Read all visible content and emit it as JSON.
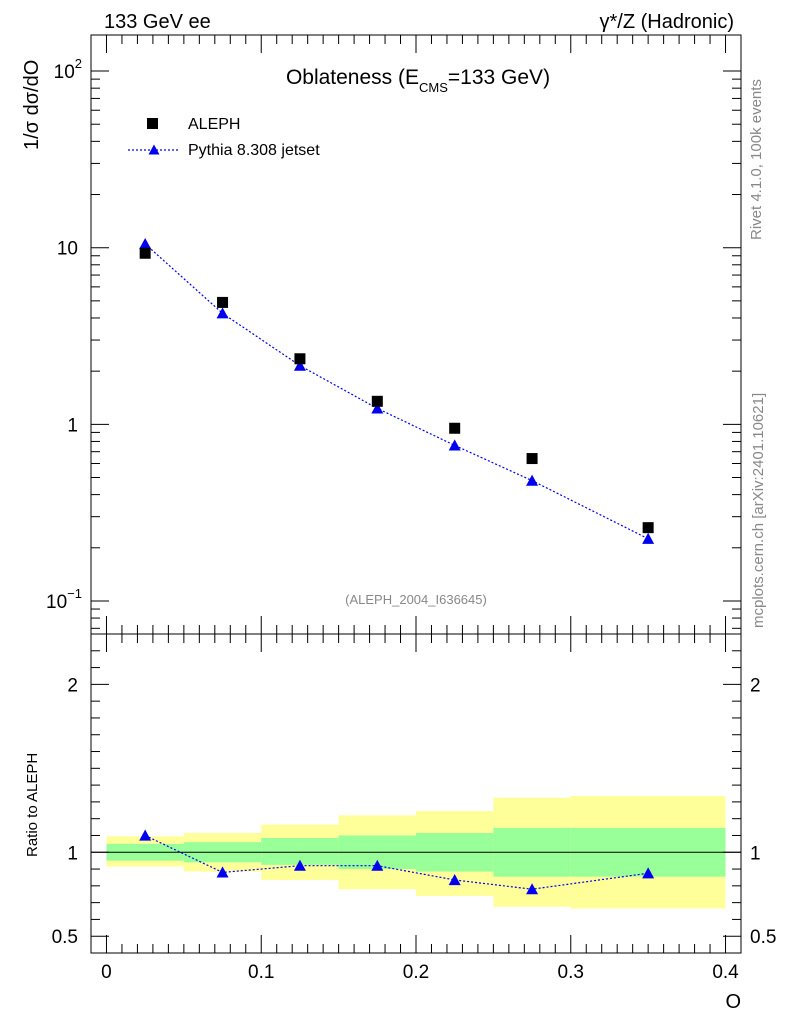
{
  "header": {
    "left": "133 GeV ee",
    "right": "γ*/Z (Hadronic)"
  },
  "side": {
    "rivet": "Rivet 4.1.0,  100k events",
    "mcplots": "mcplots.cern.ch [arXiv:2401.10621]"
  },
  "colors": {
    "data": "#000000",
    "mc": "#0000ee",
    "band_inner": "#99ff99",
    "band_outer": "#ffff99"
  },
  "chart_data": [
    {
      "type": "scatter",
      "title": "Oblateness (E",
      "title_sub": "CMS",
      "title_tail": "=133 GeV)",
      "ylabel": "1/σ  dσ/dO",
      "yscale": "log",
      "ylim": [
        0.065,
        160
      ],
      "xlim": [
        -0.01,
        0.41
      ],
      "watermark": "(ALEPH_2004_I636645)",
      "yticks": [
        {
          "value": 0.1,
          "base": "10",
          "exp": "−1"
        },
        {
          "value": 1,
          "base": "1",
          "exp": ""
        },
        {
          "value": 10,
          "base": "10",
          "exp": ""
        },
        {
          "value": 100,
          "base": "10",
          "exp": "2"
        }
      ],
      "legend": [
        {
          "name": "ALEPH",
          "marker": "square"
        },
        {
          "name": "Pythia 8.308 jetset",
          "marker": "triangle",
          "line": "dotted"
        }
      ],
      "series": [
        {
          "name": "ALEPH",
          "x": [
            0.025,
            0.075,
            0.125,
            0.175,
            0.225,
            0.275,
            0.35
          ],
          "y": [
            9.3,
            4.9,
            2.35,
            1.35,
            0.95,
            0.64,
            0.26
          ]
        },
        {
          "name": "Pythia 8.308 jetset",
          "x": [
            0.025,
            0.075,
            0.125,
            0.175,
            0.225,
            0.275,
            0.35
          ],
          "y": [
            10.5,
            4.25,
            2.15,
            1.23,
            0.76,
            0.48,
            0.225
          ]
        }
      ]
    },
    {
      "type": "scatter",
      "ylabel": "Ratio to ALEPH",
      "xlabel": "O",
      "ylim": [
        0.4,
        2.3
      ],
      "xlim": [
        -0.01,
        0.41
      ],
      "yticks": [
        {
          "value": 0.5,
          "label": "0.5"
        },
        {
          "value": 1,
          "label": "1"
        },
        {
          "value": 2,
          "label": "2"
        }
      ],
      "xticks": [
        {
          "value": 0,
          "label": "0"
        },
        {
          "value": 0.1,
          "label": "0.1"
        },
        {
          "value": 0.2,
          "label": "0.2"
        },
        {
          "value": 0.3,
          "label": "0.3"
        },
        {
          "value": 0.4,
          "label": "0.4"
        }
      ],
      "bands": [
        {
          "x0": 0.0,
          "x1": 0.05,
          "inner": [
            0.95,
            1.05
          ],
          "outer": [
            0.915,
            1.095
          ]
        },
        {
          "x0": 0.05,
          "x1": 0.1,
          "inner": [
            0.94,
            1.06
          ],
          "outer": [
            0.885,
            1.115
          ]
        },
        {
          "x0": 0.1,
          "x1": 0.15,
          "inner": [
            0.925,
            1.085
          ],
          "outer": [
            0.835,
            1.165
          ]
        },
        {
          "x0": 0.15,
          "x1": 0.2,
          "inner": [
            0.9,
            1.1
          ],
          "outer": [
            0.78,
            1.22
          ]
        },
        {
          "x0": 0.2,
          "x1": 0.25,
          "inner": [
            0.885,
            1.115
          ],
          "outer": [
            0.74,
            1.245
          ]
        },
        {
          "x0": 0.25,
          "x1": 0.3,
          "inner": [
            0.855,
            1.145
          ],
          "outer": [
            0.675,
            1.325
          ]
        },
        {
          "x0": 0.3,
          "x1": 0.4,
          "inner": [
            0.855,
            1.145
          ],
          "outer": [
            0.665,
            1.335
          ]
        }
      ],
      "series": [
        {
          "name": "Pythia 8.308 jetset",
          "x": [
            0.025,
            0.075,
            0.125,
            0.175,
            0.225,
            0.275,
            0.35
          ],
          "y": [
            1.1,
            0.88,
            0.92,
            0.92,
            0.835,
            0.78,
            0.875
          ]
        }
      ]
    }
  ]
}
